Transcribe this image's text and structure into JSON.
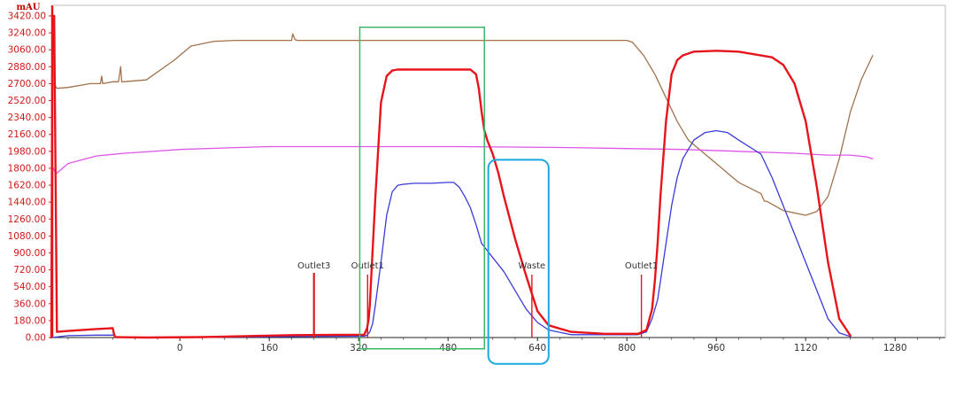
{
  "chart_data": {
    "type": "line",
    "ylabel": "mAU",
    "xlim": [
      -230,
      1370
    ],
    "ylim": [
      0,
      3420
    ],
    "y_ticks": [
      "0.00",
      "180.00",
      "360.00",
      "540.00",
      "720.00",
      "900.00",
      "1080.00",
      "1260.00",
      "1440.00",
      "1620.00",
      "1800.00",
      "1980.00",
      "2160.00",
      "2340.00",
      "2520.00",
      "2700.00",
      "2880.00",
      "3060.00",
      "3240.00",
      "3420.00"
    ],
    "x_ticks": [
      "0",
      "160",
      "320",
      "480",
      "640",
      "800",
      "960",
      "1120",
      "1280"
    ],
    "grid": false,
    "legend": "none",
    "series": [
      {
        "color": "#e8141c",
        "x": [
          -230,
          -228,
          -225,
          -220,
          -200,
          -150,
          -120,
          -118,
          -116,
          -100,
          -60,
          40,
          200,
          330,
          335,
          338,
          340,
          343,
          350,
          360,
          370,
          380,
          390,
          400,
          420,
          480,
          520,
          530,
          535,
          540,
          545,
          550,
          560,
          570,
          580,
          600,
          620,
          640,
          660,
          700,
          760,
          820,
          835,
          845,
          850,
          855,
          860,
          870,
          880,
          890,
          900,
          920,
          960,
          1000,
          1040,
          1060,
          1080,
          1100,
          1120,
          1140,
          1160,
          1180,
          1200
        ],
        "y": [
          0,
          3420,
          3420,
          60,
          70,
          90,
          100,
          40,
          5,
          3,
          0,
          5,
          25,
          30,
          100,
          200,
          350,
          700,
          1500,
          2500,
          2780,
          2840,
          2850,
          2850,
          2850,
          2850,
          2850,
          2800,
          2650,
          2400,
          2200,
          2100,
          1950,
          1750,
          1500,
          1050,
          650,
          280,
          130,
          60,
          40,
          40,
          80,
          300,
          600,
          1000,
          1500,
          2300,
          2800,
          2950,
          3000,
          3040,
          3050,
          3040,
          3000,
          2980,
          2900,
          2700,
          2300,
          1600,
          800,
          200,
          20
        ]
      },
      {
        "color": "#3a3ad8",
        "x": [
          -230,
          -200,
          -150,
          -118,
          -116,
          -100,
          -60,
          40,
          200,
          330,
          335,
          340,
          345,
          350,
          360,
          370,
          380,
          390,
          400,
          420,
          450,
          480,
          490,
          500,
          510,
          520,
          530,
          540,
          560,
          580,
          600,
          620,
          640,
          660,
          700,
          760,
          820,
          835,
          845,
          855,
          860,
          870,
          880,
          890,
          900,
          920,
          940,
          960,
          980,
          1000,
          1040,
          1060,
          1080,
          1100,
          1120,
          1140,
          1160,
          1180,
          1200
        ],
        "y": [
          0,
          20,
          25,
          25,
          5,
          3,
          0,
          3,
          10,
          15,
          25,
          60,
          150,
          350,
          800,
          1300,
          1550,
          1620,
          1630,
          1640,
          1640,
          1650,
          1650,
          1600,
          1500,
          1380,
          1200,
          1000,
          850,
          700,
          500,
          300,
          160,
          80,
          30,
          30,
          30,
          60,
          200,
          400,
          600,
          1000,
          1400,
          1700,
          1900,
          2100,
          2180,
          2200,
          2180,
          2100,
          1950,
          1700,
          1400,
          1100,
          800,
          500,
          200,
          50,
          10
        ]
      },
      {
        "color": "#a0734e",
        "x": [
          -230,
          -225,
          -220,
          -200,
          -160,
          -142,
          -140,
          -138,
          -120,
          -110,
          -106,
          -104,
          -102,
          -60,
          -10,
          20,
          60,
          100,
          190,
          200,
          202,
          206,
          210,
          300,
          400,
          600,
          700,
          800,
          810,
          830,
          850,
          870,
          890,
          910,
          960,
          1000,
          1040,
          1046,
          1050,
          1080,
          1120,
          1140,
          1160,
          1180,
          1200,
          1220,
          1240
        ],
        "y": [
          2680,
          2700,
          2650,
          2660,
          2700,
          2700,
          2780,
          2700,
          2720,
          2720,
          2880,
          2720,
          2720,
          2740,
          2950,
          3100,
          3150,
          3160,
          3160,
          3160,
          3230,
          3170,
          3160,
          3160,
          3160,
          3160,
          3160,
          3160,
          3140,
          3000,
          2800,
          2550,
          2300,
          2100,
          1850,
          1650,
          1530,
          1450,
          1450,
          1350,
          1300,
          1340,
          1500,
          1900,
          2400,
          2750,
          3000
        ]
      },
      {
        "color": "#e055e8",
        "x": [
          -230,
          -222,
          -218,
          -200,
          -150,
          -100,
          -60,
          0,
          100,
          160,
          300,
          500,
          700,
          800,
          900,
          1000,
          1100,
          1160,
          1200,
          1230,
          1240
        ],
        "y": [
          1850,
          1740,
          1760,
          1850,
          1930,
          1960,
          1975,
          2000,
          2020,
          2030,
          2030,
          2030,
          2020,
          2010,
          2000,
          1980,
          1960,
          1940,
          1940,
          1920,
          1900
        ]
      }
    ],
    "markers": [
      {
        "label": "Outlet3",
        "x": 240
      },
      {
        "label": "Outlet1",
        "x": 336
      },
      {
        "label": "Waste",
        "x": 630
      },
      {
        "label": "Outlet1",
        "x": 826
      }
    ],
    "annotations": [
      {
        "shape": "rectangle",
        "color": "#3db86a",
        "x0": 322,
        "x1": 545,
        "y0": 3300,
        "y1": -120
      },
      {
        "shape": "rounded-rectangle",
        "color": "#1aa8e0",
        "x0": 552,
        "x1": 660,
        "y0": 1890,
        "y1": -280
      }
    ]
  }
}
